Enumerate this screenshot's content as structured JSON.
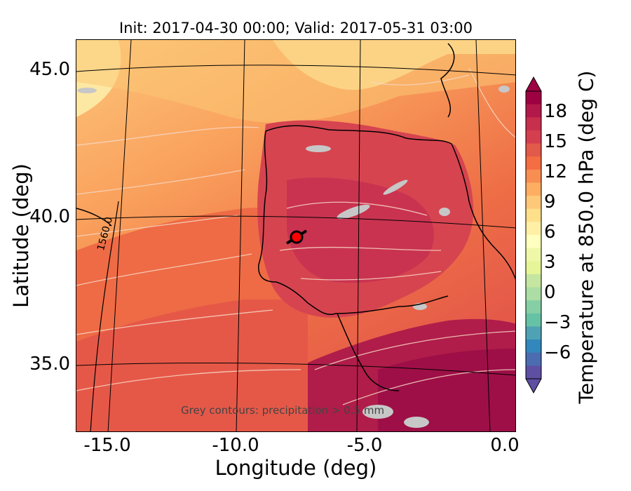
{
  "title": "Init: 2017-04-30 00:00; Valid: 2017-05-31 03:00",
  "map": {
    "xlabel": "Longitude (deg)",
    "ylabel": "Latitude (deg)",
    "xticks": [
      "-15.0",
      "-10.0",
      "-5.0",
      "0.0"
    ],
    "yticks": [
      "45.0",
      "40.0",
      "35.0"
    ],
    "contour_label": "1560.0",
    "note": "Grey contours: precipitation > 0.5 mm",
    "marker": {
      "name": "location marker",
      "color": "#ff0000"
    },
    "field_colors": [
      "#fde08b",
      "#fdb56a",
      "#f98e52",
      "#ef6a45",
      "#dd4a4c",
      "#c72f4c",
      "#a00f48"
    ]
  },
  "colorbar": {
    "label": "Temperature at 850.0 hPa (deg C)",
    "ticks": [
      "18",
      "15",
      "12",
      "9",
      "6",
      "3",
      "0",
      "−3",
      "−6"
    ],
    "range": [
      -9,
      21
    ],
    "extend": "both",
    "colormap": "Spectral_r"
  }
}
